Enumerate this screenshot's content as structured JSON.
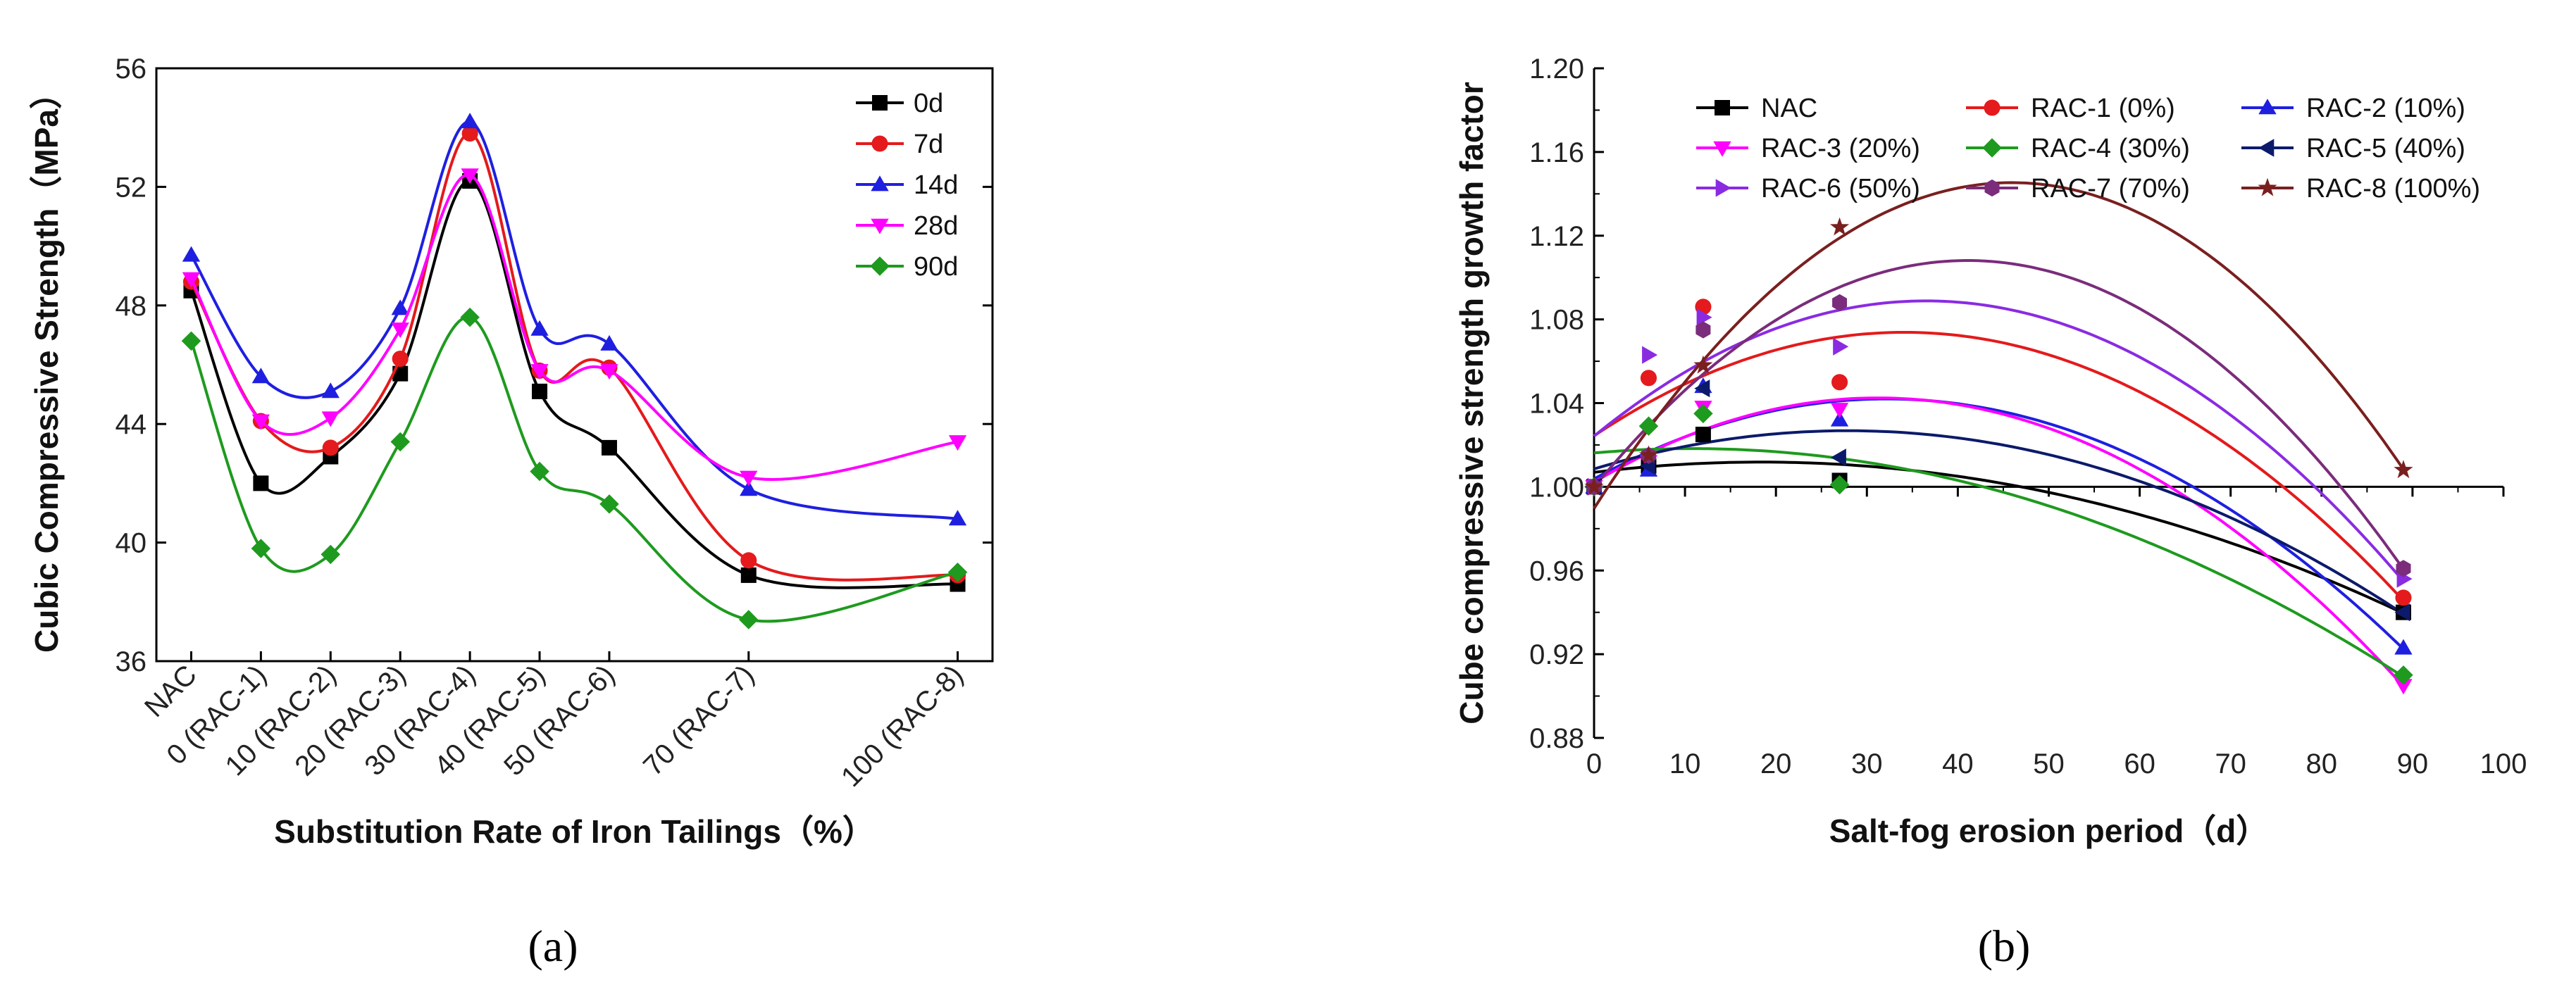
{
  "chart_data": [
    {
      "type": "line",
      "panel": "a",
      "caption": "(a)",
      "xlabel": "Substitution Rate of Iron Tailings（%）",
      "ylabel": "Cubic Compressive Strength（MPa）",
      "ylim": [
        36,
        56
      ],
      "yticks": [
        "36",
        "40",
        "44",
        "48",
        "52",
        "56"
      ],
      "categories": [
        "NAC",
        "0 (RAC-1)",
        "10 (RAC-2)",
        "20 (RAC-3)",
        "30 (RAC-4)",
        "40 (RAC-5)",
        "50 (RAC-6)",
        "70 (RAC-7)",
        "100 (RAC-8)"
      ],
      "x": [
        -10,
        0,
        10,
        20,
        30,
        40,
        50,
        70,
        100
      ],
      "legend_position": "top-right",
      "series": [
        {
          "name": "0d",
          "color": "#000000",
          "marker": "square",
          "values": [
            48.5,
            42.0,
            42.9,
            45.7,
            52.2,
            45.1,
            43.2,
            38.9,
            38.6
          ]
        },
        {
          "name": "7d",
          "color": "#e41a1c",
          "marker": "circle",
          "values": [
            48.8,
            44.1,
            43.2,
            46.2,
            53.8,
            45.8,
            45.9,
            39.4,
            38.9
          ]
        },
        {
          "name": "14d",
          "color": "#1f1fe0",
          "marker": "triangle-up",
          "values": [
            49.7,
            45.6,
            45.1,
            47.9,
            54.2,
            47.2,
            46.7,
            41.8,
            40.8
          ]
        },
        {
          "name": "28d",
          "color": "#ff00ff",
          "marker": "triangle-down",
          "values": [
            48.9,
            44.1,
            44.2,
            47.2,
            52.4,
            45.8,
            45.8,
            42.2,
            43.4
          ]
        },
        {
          "name": "90d",
          "color": "#1e9a1e",
          "marker": "diamond",
          "values": [
            46.8,
            39.8,
            39.6,
            43.4,
            47.6,
            42.4,
            41.3,
            37.4,
            39.0
          ]
        }
      ]
    },
    {
      "type": "scatter",
      "panel": "b",
      "caption": "(b)",
      "xlabel": "Salt-fog erosion period（d）",
      "ylabel": "Cube compressive strength growth factor",
      "xlim": [
        0,
        100
      ],
      "ylim": [
        0.88,
        1.2
      ],
      "xticks": [
        "0",
        "10",
        "20",
        "30",
        "40",
        "50",
        "60",
        "70",
        "80",
        "90",
        "100"
      ],
      "yticks": [
        "0.88",
        "0.92",
        "0.96",
        "1.00",
        "1.04",
        "1.08",
        "1.12",
        "1.16",
        "1.20"
      ],
      "x": [
        0,
        6,
        12,
        27,
        89
      ],
      "legend_position": "top",
      "series": [
        {
          "name": "NAC",
          "color": "#000000",
          "marker": "square",
          "values": [
            1.0,
            1.01,
            1.025,
            1.003,
            0.94
          ]
        },
        {
          "name": "RAC-1 (0%)",
          "color": "#e41a1c",
          "marker": "circle",
          "values": [
            1.0,
            1.052,
            1.086,
            1.05,
            0.947
          ]
        },
        {
          "name": "RAC-2 (10%)",
          "color": "#1f1fe0",
          "marker": "triangle-up",
          "values": [
            1.0,
            1.008,
            1.048,
            1.032,
            0.923
          ]
        },
        {
          "name": "RAC-3 (20%)",
          "color": "#ff00ff",
          "marker": "triangle-down",
          "values": [
            1.0,
            1.012,
            1.038,
            1.037,
            0.905
          ]
        },
        {
          "name": "RAC-4 (30%)",
          "color": "#1e9a1e",
          "marker": "diamond",
          "values": [
            1.0,
            1.029,
            1.035,
            1.001,
            0.91
          ]
        },
        {
          "name": "RAC-5 (40%)",
          "color": "#0c1a6b",
          "marker": "triangle-left",
          "values": [
            1.0,
            1.01,
            1.047,
            1.014,
            0.94
          ]
        },
        {
          "name": "RAC-6 (50%)",
          "color": "#8a2be2",
          "marker": "triangle-right",
          "values": [
            1.0,
            1.063,
            1.081,
            1.067,
            0.956
          ]
        },
        {
          "name": "RAC-7 (70%)",
          "color": "#7b2c7b",
          "marker": "hexagon",
          "values": [
            1.0,
            1.015,
            1.075,
            1.088,
            0.961
          ]
        },
        {
          "name": "RAC-8 (100%)",
          "color": "#7a1f1f",
          "marker": "star",
          "values": [
            1.0,
            1.015,
            1.058,
            1.124,
            1.008
          ]
        }
      ]
    }
  ]
}
